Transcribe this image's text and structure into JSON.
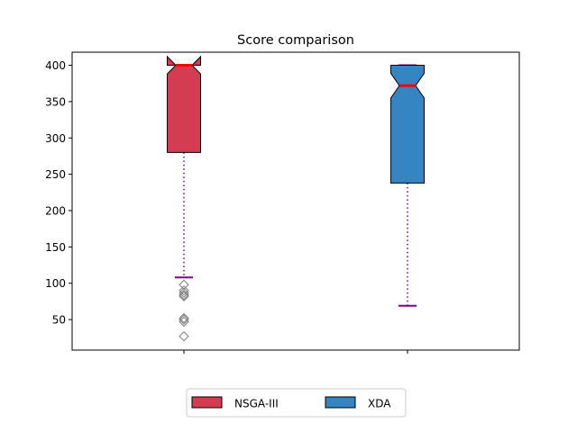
{
  "chart_data": {
    "type": "box",
    "title": "Score comparison",
    "xlabel": "",
    "ylabel": "",
    "ylim": [
      8,
      418
    ],
    "yticks": [
      50,
      100,
      150,
      200,
      250,
      300,
      350,
      400
    ],
    "notched": true,
    "grid": false,
    "legend": {
      "placement": "bottom-center",
      "columns": 2
    },
    "series": [
      {
        "name": "NSGA-III",
        "color": "#d43c52",
        "q1": 280,
        "median": 400,
        "q3": 400,
        "notch_low": 388,
        "notch_high": 412,
        "whisker_low": 108,
        "whisker_high": 400,
        "outliers": [
          98,
          90,
          87,
          84,
          82,
          52,
          50,
          47,
          27
        ]
      },
      {
        "name": "XDA",
        "color": "#3485c1",
        "q1": 238,
        "median": 372,
        "q3": 400,
        "notch_low": 355,
        "notch_high": 389,
        "whisker_low": 69,
        "whisker_high": 400,
        "outliers": []
      }
    ],
    "style": {
      "median_color": "#ff0000",
      "whisker_color": "#800080",
      "outlier_color": "#808080"
    }
  }
}
